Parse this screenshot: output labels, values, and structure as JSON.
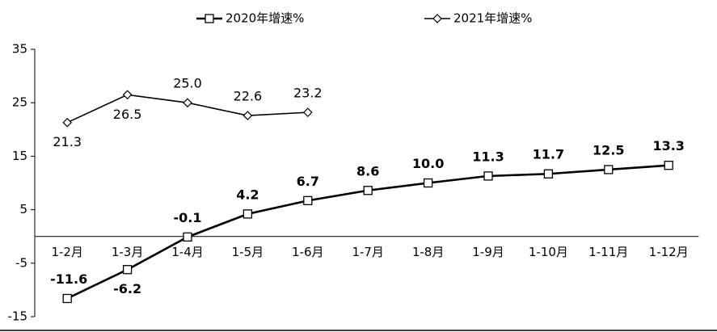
{
  "chart_data": {
    "type": "line",
    "categories": [
      "1-2月",
      "1-3月",
      "1-4月",
      "1-5月",
      "1-6月",
      "1-7月",
      "1-8月",
      "1-9月",
      "1-10月",
      "1-11月",
      "1-12月"
    ],
    "series": [
      {
        "name": "2020年增速%",
        "color": "#000000",
        "marker": "square",
        "values": [
          -11.6,
          -6.2,
          -0.1,
          4.2,
          6.7,
          8.6,
          10.0,
          11.3,
          11.7,
          12.5,
          13.3
        ],
        "value_labels": [
          "-11.6",
          "-6.2",
          "-0.1",
          "4.2",
          "6.7",
          "8.6",
          "10.0",
          "11.3",
          "11.7",
          "12.5",
          "13.3"
        ]
      },
      {
        "name": "2021年增速%",
        "color": "#000000",
        "marker": "diamond",
        "values": [
          21.3,
          26.5,
          25.0,
          22.6,
          23.2,
          null,
          null,
          null,
          null,
          null,
          null
        ],
        "value_labels": [
          "21.3",
          "26.5",
          "25.0",
          "22.6",
          "23.2",
          null,
          null,
          null,
          null,
          null,
          null
        ]
      }
    ],
    "ylim": [
      -15,
      35
    ],
    "yticks": [
      -15,
      -5,
      5,
      15,
      25,
      35
    ],
    "grid": false,
    "legend": "top"
  }
}
